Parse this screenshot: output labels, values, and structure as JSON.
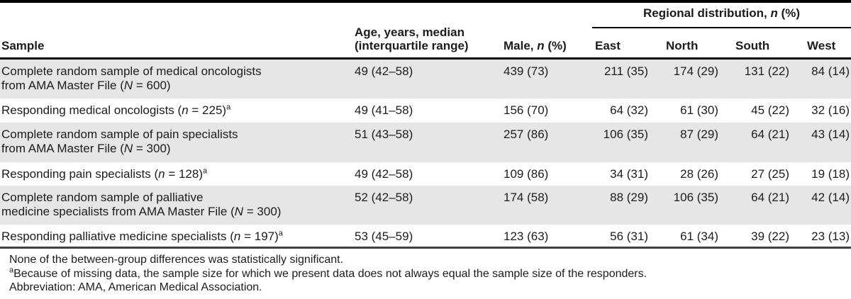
{
  "colors": {
    "row_shade": "#e6e6e6",
    "text": "#1c1c1c",
    "rule_black": "#000000",
    "rule_bottom_gray": "#3f3f3f",
    "background": "#ffffff"
  },
  "table": {
    "header": {
      "sample": "Sample",
      "age_parts": [
        {
          "t": "Age, years, median"
        },
        {
          "s": "br"
        },
        {
          "t": "(interquartile range)"
        }
      ],
      "male_parts": [
        {
          "t": "Male, "
        },
        {
          "t": "n",
          "s": "italic"
        },
        {
          "t": " (%)"
        }
      ],
      "regional_parts": [
        {
          "t": "Regional distribution, "
        },
        {
          "t": "n",
          "s": "italic"
        },
        {
          "t": " (%)"
        }
      ],
      "regions": [
        "East",
        "North",
        "South",
        "West"
      ]
    },
    "rows": [
      {
        "sample_parts": [
          {
            "t": "Complete random sample of medical oncologists"
          },
          {
            "s": "br"
          },
          {
            "t": "from AMA Master File ("
          },
          {
            "t": "N",
            "s": "italic"
          },
          {
            "t": " = 600)"
          }
        ],
        "age": "49 (42–58)",
        "male": "439 (73)",
        "east": "211 (35)",
        "north": "174 (29)",
        "south": "131 (22)",
        "west": "84 (14)"
      },
      {
        "sample_parts": [
          {
            "t": "Responding medical oncologists ("
          },
          {
            "t": "n",
            "s": "italic"
          },
          {
            "t": " = 225)"
          },
          {
            "t": "a",
            "s": "sup"
          }
        ],
        "age": "49 (41–58)",
        "male": "156 (70)",
        "east": "64 (32)",
        "north": "61 (30)",
        "south": "45 (22)",
        "west": "32 (16)"
      },
      {
        "sample_parts": [
          {
            "t": "Complete random sample of pain specialists"
          },
          {
            "s": "br"
          },
          {
            "t": "from AMA Master File ("
          },
          {
            "t": "N",
            "s": "italic"
          },
          {
            "t": " = 300)"
          }
        ],
        "age": "51 (43–58)",
        "male": "257 (86)",
        "east": "106 (35)",
        "north": "87 (29)",
        "south": "64 (21)",
        "west": "43 (14)"
      },
      {
        "sample_parts": [
          {
            "t": "Responding pain specialists ("
          },
          {
            "t": "n",
            "s": "italic"
          },
          {
            "t": " = 128)"
          },
          {
            "t": "a",
            "s": "sup"
          }
        ],
        "age": "49 (42–58)",
        "male": "109 (86)",
        "east": "34 (31)",
        "north": "28 (26)",
        "south": "27 (25)",
        "west": "19 (18)"
      },
      {
        "sample_parts": [
          {
            "t": "Complete random sample of palliative"
          },
          {
            "s": "br"
          },
          {
            "t": "medicine specialists from AMA Master File ("
          },
          {
            "t": "N",
            "s": "italic"
          },
          {
            "t": " = 300)"
          }
        ],
        "age": "52 (42–58)",
        "male": "174 (58)",
        "east": "88 (29)",
        "north": "106 (35)",
        "south": "64 (21)",
        "west": "42 (14)"
      },
      {
        "sample_parts": [
          {
            "t": "Responding palliative medicine specialists ("
          },
          {
            "t": "n",
            "s": "italic"
          },
          {
            "t": " = 197)"
          },
          {
            "t": "a",
            "s": "sup"
          }
        ],
        "age": "53 (45–59)",
        "male": "123 (63)",
        "east": "56 (31)",
        "north": "61 (34)",
        "south": "39 (22)",
        "west": "23 (13)"
      }
    ]
  },
  "footnotes": {
    "significance": "None of the between-group differences was statistically significant.",
    "missing_data_parts": [
      {
        "t": "a",
        "s": "sup"
      },
      {
        "t": "Because of missing data, the sample size for which we present data does not always equal the sample size of the responders."
      }
    ],
    "abbreviation": "Abbreviation: AMA, American Medical Association."
  }
}
